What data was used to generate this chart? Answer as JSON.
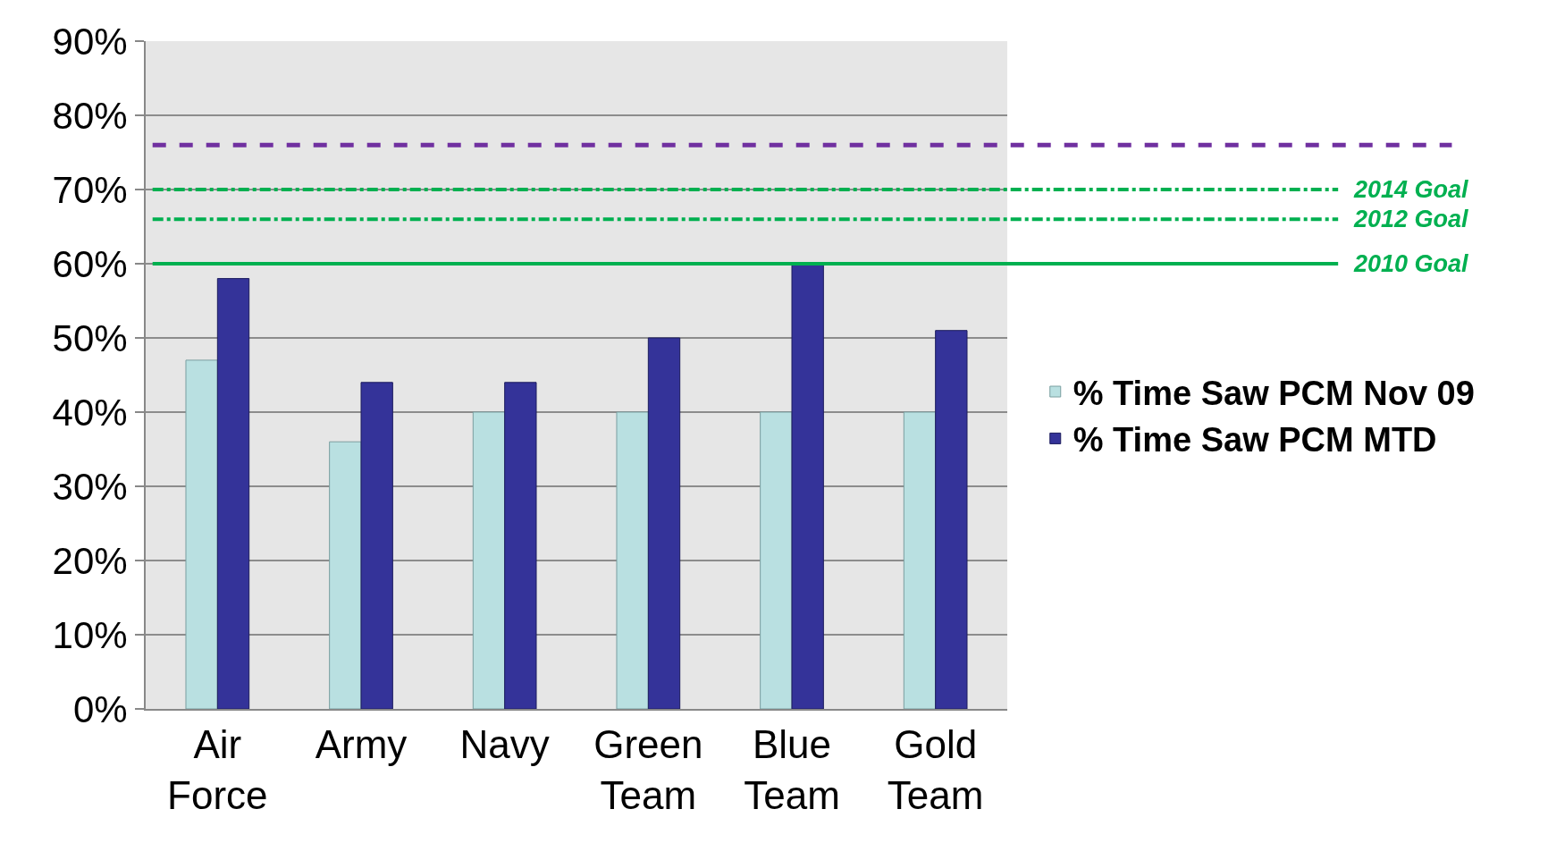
{
  "chart_data": {
    "type": "bar",
    "categories": [
      "Air Force",
      "Army",
      "Navy",
      "Green Team",
      "Blue Team",
      "Gold Team"
    ],
    "series": [
      {
        "name": "% Time Saw PCM Nov 09",
        "color": "#b9e0e1",
        "values": [
          47,
          36,
          40,
          40,
          40,
          40
        ]
      },
      {
        "name": "% Time Saw PCM MTD",
        "color": "#343399",
        "values": [
          58,
          44,
          44,
          50,
          60,
          51
        ]
      }
    ],
    "ylim": [
      0,
      90
    ],
    "yticks": [
      {
        "value": 0,
        "label": "0%"
      },
      {
        "value": 10,
        "label": "10%"
      },
      {
        "value": 20,
        "label": "20%"
      },
      {
        "value": 30,
        "label": "30%"
      },
      {
        "value": 40,
        "label": "40%"
      },
      {
        "value": 50,
        "label": "50%"
      },
      {
        "value": 60,
        "label": "60%"
      },
      {
        "value": 70,
        "label": "70%"
      },
      {
        "value": 80,
        "label": "80%"
      },
      {
        "value": 90,
        "label": "90%"
      }
    ],
    "grid": "y",
    "legend": "right",
    "ref_lines": [
      {
        "axis": "y",
        "value": 76,
        "label": null,
        "color": "#7030a0",
        "line_style": "dashed"
      },
      {
        "axis": "y",
        "value": 70,
        "label": "2014 Goal",
        "color": "#00b050",
        "line_style": "dashdot"
      },
      {
        "axis": "y",
        "value": 66,
        "label": "2012 Goal",
        "color": "#00b050",
        "line_style": "dashdot"
      },
      {
        "axis": "y",
        "value": 60,
        "label": "2010 Goal",
        "color": "#00b050",
        "line_style": "solid"
      }
    ]
  }
}
